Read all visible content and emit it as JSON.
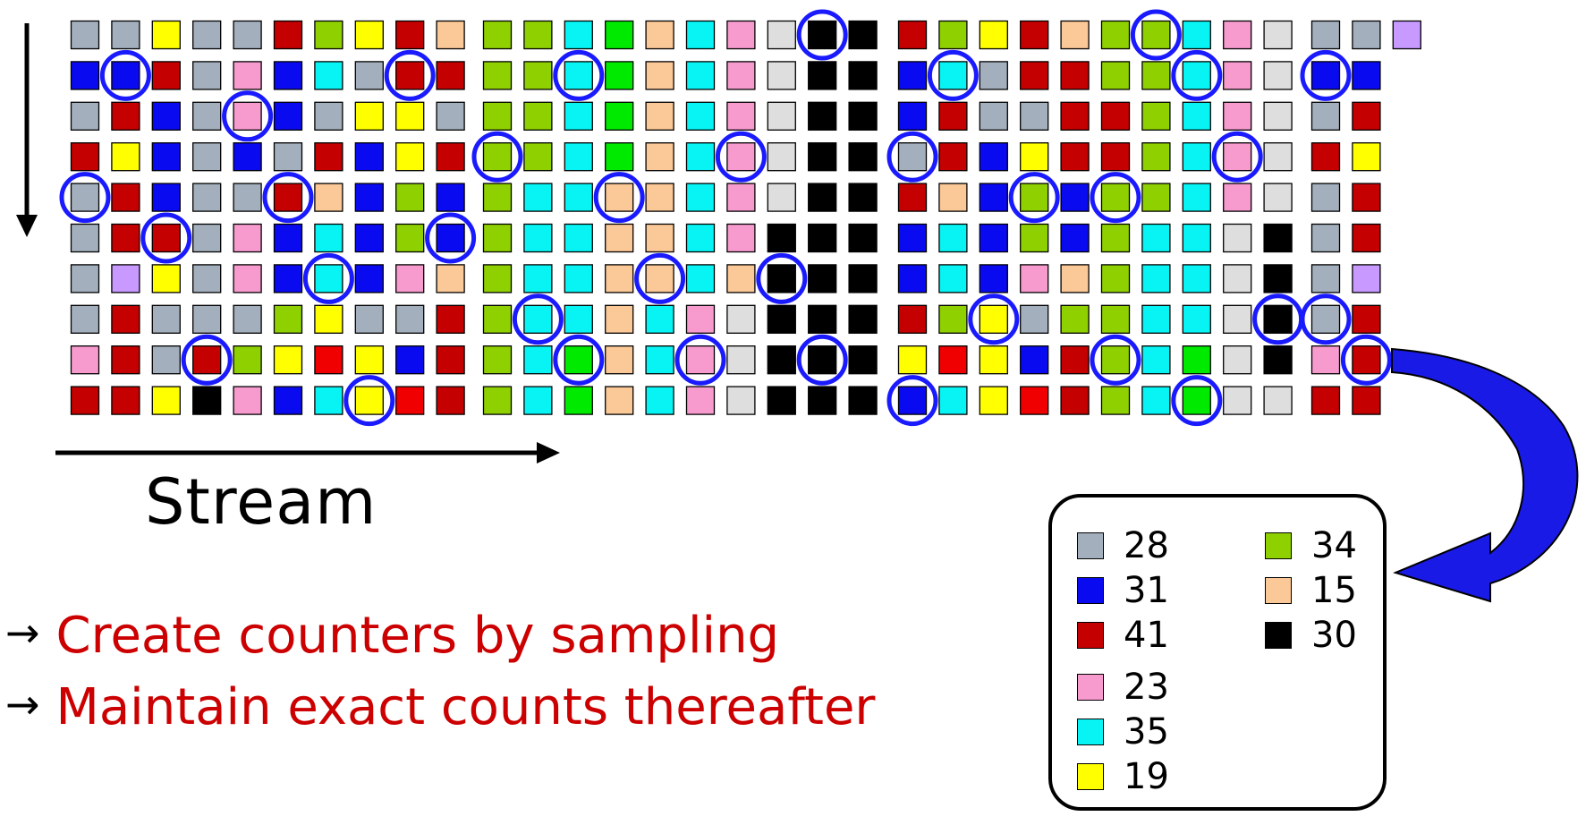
{
  "palette": {
    "G": "#a3afbd",
    "B": "#0a0af0",
    "R": "#c40000",
    "r": "#f00000",
    "P": "#f79bcf",
    "C": "#08f4f4",
    "Y": "#ffff00",
    "L": "#8fd100",
    "g": "#00ea00",
    "O": "#fbc897",
    "K": "#000000",
    "W": "#dedede",
    "V": "#c89aff",
    "-": ""
  },
  "stream": {
    "label": "Stream",
    "blocks": [
      [
        "GGYGGRLYRO",
        "BBRGPBCGRR",
        "GRBGPBGYYG",
        "RYBGBGRBYR",
        "GRBGGROBLB",
        "GRRGPBCBLB",
        "GVYGPBCBPO",
        "GRGGGLYGGR",
        "PRGRLYrYBR",
        "RRYKPBCYrR"
      ],
      [
        "LLCgOCPWKK",
        "LLCgOCPWKK",
        "LLCgOCPWKK",
        "LLCgOCPWKK",
        "LCCOOCPWKK",
        "LCCOOCPKKK",
        "LCCOOCOKKK",
        "LCCOCPWKKK",
        "LCgOCPWKKK",
        "LCgOCPWKKK"
      ],
      [
        "RLYROLLCPW",
        "BCGRRLLCPW",
        "BRGGRRLCPW",
        "GRBYRRLCPW",
        "ROBLBLLCPW",
        "BCBLBLCCWK",
        "BCBPOLCCWK",
        "RLYGLLCCWK",
        "YrYBRLCgWK",
        "BCYrRLCgWW"
      ],
      [
        "GGV",
        "BB-",
        "GR-",
        "RY-",
        "GR-",
        "GR-",
        "GV-",
        "GR-",
        "PR-",
        "RR-"
      ]
    ],
    "samples": [
      [
        0,
        1,
        1
      ],
      [
        0,
        1,
        8
      ],
      [
        0,
        2,
        4
      ],
      [
        0,
        4,
        0
      ],
      [
        0,
        4,
        5
      ],
      [
        0,
        5,
        2
      ],
      [
        0,
        5,
        9
      ],
      [
        0,
        6,
        6
      ],
      [
        0,
        8,
        3
      ],
      [
        0,
        9,
        7
      ],
      [
        1,
        0,
        8
      ],
      [
        1,
        1,
        2
      ],
      [
        1,
        3,
        0
      ],
      [
        1,
        3,
        6
      ],
      [
        1,
        4,
        3
      ],
      [
        1,
        6,
        4
      ],
      [
        1,
        6,
        7
      ],
      [
        1,
        7,
        1
      ],
      [
        1,
        8,
        2
      ],
      [
        1,
        8,
        5
      ],
      [
        1,
        8,
        8
      ],
      [
        2,
        0,
        6
      ],
      [
        2,
        1,
        1
      ],
      [
        2,
        1,
        7
      ],
      [
        2,
        3,
        0
      ],
      [
        2,
        3,
        8
      ],
      [
        2,
        4,
        3
      ],
      [
        2,
        4,
        5
      ],
      [
        2,
        7,
        2
      ],
      [
        2,
        7,
        9
      ],
      [
        2,
        8,
        5
      ],
      [
        2,
        9,
        0
      ],
      [
        2,
        9,
        7
      ],
      [
        3,
        1,
        0
      ],
      [
        3,
        7,
        0
      ],
      [
        3,
        8,
        1
      ]
    ]
  },
  "bullets": [
    {
      "arrow": "→",
      "text": "Create counters by sampling"
    },
    {
      "arrow": "→",
      "text": "Maintain exact counts thereafter"
    }
  ],
  "legend": {
    "left": [
      {
        "key": "G",
        "count": "28"
      },
      {
        "key": "B",
        "count": "31"
      },
      {
        "key": "R",
        "count": "41"
      },
      {
        "key": "P",
        "count": "23"
      },
      {
        "key": "C",
        "count": "35"
      },
      {
        "key": "Y",
        "count": "19"
      }
    ],
    "right": [
      {
        "key": "L",
        "count": "34"
      },
      {
        "key": "O",
        "count": "15"
      },
      {
        "key": "K",
        "count": "30"
      }
    ]
  }
}
